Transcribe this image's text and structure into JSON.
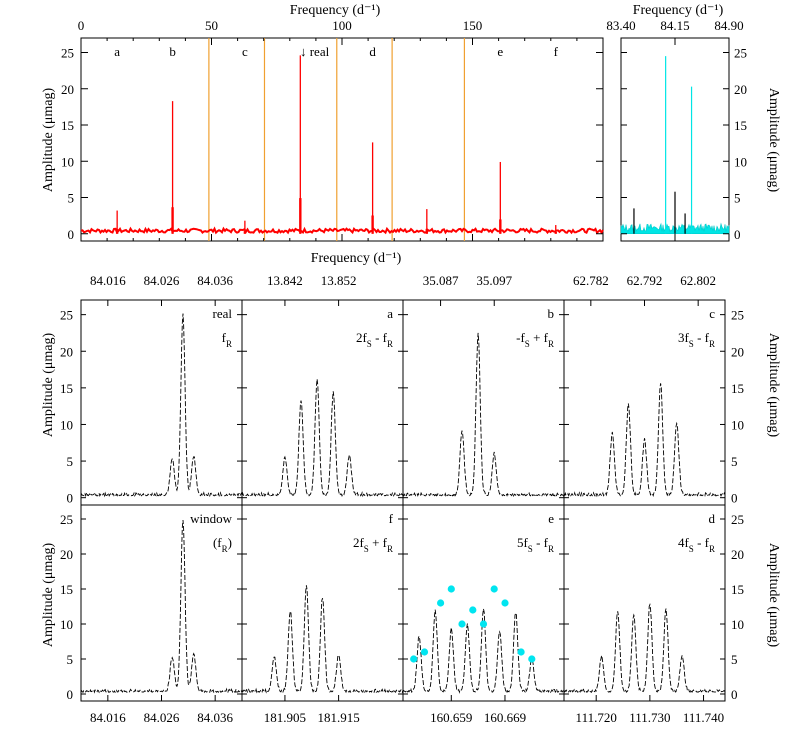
{
  "top_panel": {
    "xlabel_top": "Frequency (d⁻¹)",
    "xlabel_bottom": "Frequency (d⁻¹)",
    "ylabel": "Amplitude (μmag)",
    "x_ticks": [
      "0",
      "50",
      "100",
      "150"
    ],
    "y_ticks": [
      "0",
      "5",
      "10",
      "15",
      "20",
      "25"
    ],
    "letters": [
      {
        "text": "a",
        "x": 13.85
      },
      {
        "text": "b",
        "x": 35.09
      },
      {
        "text": "c",
        "x": 62.79
      },
      {
        "text": "↓ real",
        "x": 89.5
      },
      {
        "text": "d",
        "x": 111.73
      },
      {
        "text": "e",
        "x": 160.66
      },
      {
        "text": "f",
        "x": 181.9
      }
    ]
  },
  "zoom_panel": {
    "xlabel_top": "Frequency (d⁻¹)",
    "ylabel": "Amplitude (μmag)",
    "x_ticks": [
      "83.40",
      "84.15",
      "84.90"
    ],
    "y_ticks": [
      "0",
      "5",
      "10",
      "15",
      "20",
      "25"
    ]
  },
  "grid": {
    "top_ticks": [
      [
        "84.016",
        "84.026",
        "84.036"
      ],
      [
        "13.842",
        "13.852"
      ],
      [
        "35.087",
        "35.097"
      ],
      [
        "62.782",
        "62.792",
        "62.802"
      ]
    ],
    "bottom_ticks": [
      [
        "84.016",
        "84.026",
        "84.036"
      ],
      [
        "181.905",
        "181.915"
      ],
      [
        "160.659",
        "160.669"
      ],
      [
        "111.720",
        "111.730",
        "111.740"
      ]
    ],
    "y_ticks": [
      "0",
      "5",
      "10",
      "15",
      "20",
      "25"
    ],
    "ylabel": "Amplitude (μmag)",
    "panels": [
      {
        "name": "real",
        "formula": "f_R"
      },
      {
        "name": "a",
        "formula": "2f_S - f_R"
      },
      {
        "name": "b",
        "formula": "-f_S + f_R"
      },
      {
        "name": "c",
        "formula": "3f_S - f_R"
      },
      {
        "name": "window",
        "formula": "(f_R)"
      },
      {
        "name": "f",
        "formula": "2f_S + f_R"
      },
      {
        "name": "e",
        "formula": "5f_S - f_R"
      },
      {
        "name": "d",
        "formula": "4f_S - f_R"
      }
    ]
  },
  "chart_data": [
    {
      "type": "line",
      "title": "",
      "xlabel": "Frequency (d⁻¹)",
      "ylabel": "Amplitude (μmag)",
      "xlim": [
        0,
        200
      ],
      "ylim": [
        -1,
        27
      ],
      "series": [
        {
          "x": [
            13.85,
            35.09,
            62.79,
            84.03,
            111.73,
            132.5,
            160.66,
            181.9
          ],
          "y": [
            3.2,
            18.3,
            1.8,
            24.6,
            12.6,
            3.4,
            9.9,
            1.2
          ]
        }
      ],
      "vertical_lines": [
        49.0,
        70.3,
        98.0,
        119.2,
        146.9
      ],
      "colors": {
        "spectrum": "#ff0000",
        "lines": "#f0a030"
      }
    },
    {
      "type": "line",
      "title": "",
      "xlabel": "Frequency (d⁻¹)",
      "ylabel": "Amplitude (μmag)",
      "xlim": [
        83.4,
        84.9
      ],
      "ylim": [
        -1,
        27
      ],
      "series": [
        {
          "x": [
            83.58,
            84.02,
            84.15,
            84.29,
            84.38
          ],
          "y": [
            3.5,
            24.5,
            5.8,
            2.8,
            20.3
          ]
        }
      ],
      "colors": {
        "spectrum": "#00e5e5",
        "overlay": "#000000"
      }
    },
    {
      "type": "line",
      "title": "",
      "ylabel": "Amplitude (μmag)",
      "ylim": [
        -1,
        27
      ],
      "panels": [
        {
          "name": "real",
          "xlim": [
            84.011,
            84.041
          ],
          "peaks": [
            [
              84.03,
              24.5
            ],
            [
              84.028,
              5.0
            ],
            [
              84.032,
              5.3
            ]
          ]
        },
        {
          "name": "a",
          "xlim": [
            13.834,
            13.864
          ],
          "peaks": [
            [
              13.845,
              13.0
            ],
            [
              13.848,
              15.8
            ],
            [
              13.851,
              14.0
            ],
            [
              13.842,
              5.1
            ],
            [
              13.854,
              5.4
            ]
          ]
        },
        {
          "name": "b",
          "xlim": [
            35.08,
            35.11
          ],
          "peaks": [
            [
              35.094,
              22.1
            ],
            [
              35.091,
              8.8
            ],
            [
              35.097,
              5.6
            ]
          ]
        },
        {
          "name": "c",
          "xlim": [
            62.777,
            62.807
          ],
          "peaks": [
            [
              62.789,
              12.4
            ],
            [
              62.795,
              15.3
            ],
            [
              62.786,
              8.5
            ],
            [
              62.792,
              7.5
            ],
            [
              62.798,
              9.8
            ]
          ]
        },
        {
          "name": "window",
          "xlim": [
            84.011,
            84.041
          ],
          "peaks": [
            [
              84.03,
              24.5
            ],
            [
              84.032,
              5.4
            ],
            [
              84.028,
              4.9
            ]
          ]
        },
        {
          "name": "f",
          "xlim": [
            181.897,
            181.927
          ],
          "peaks": [
            [
              181.906,
              11.5
            ],
            [
              181.909,
              15.2
            ],
            [
              181.912,
              13.4
            ],
            [
              181.903,
              5.0
            ],
            [
              181.915,
              5.2
            ]
          ]
        },
        {
          "name": "e",
          "xlim": [
            160.65,
            160.68
          ],
          "peaks": [
            [
              160.656,
              11.5
            ],
            [
              160.659,
              8.8
            ],
            [
              160.662,
              9.5
            ],
            [
              160.665,
              11.8
            ],
            [
              160.668,
              8.6
            ],
            [
              160.671,
              11.3
            ],
            [
              160.653,
              7.8
            ],
            [
              160.674,
              4.6
            ]
          ]
        },
        {
          "name": "d",
          "xlim": [
            111.714,
            111.744
          ],
          "peaks": [
            [
              111.724,
              11.5
            ],
            [
              111.727,
              11.0
            ],
            [
              111.73,
              12.5
            ],
            [
              111.733,
              11.7
            ],
            [
              111.721,
              5.0
            ],
            [
              111.736,
              5.1
            ]
          ]
        }
      ],
      "markers_panel_e": [
        [
          160.652,
          5.0
        ],
        [
          160.654,
          6.0
        ],
        [
          160.657,
          13.0
        ],
        [
          160.659,
          15.0
        ],
        [
          160.661,
          10.0
        ],
        [
          160.663,
          12.0
        ],
        [
          160.665,
          10.0
        ],
        [
          160.667,
          15.0
        ],
        [
          160.669,
          13.0
        ],
        [
          160.672,
          6.0
        ],
        [
          160.674,
          5.0
        ]
      ],
      "colors": {
        "curve": "#000000",
        "markers": "#00e5f0"
      }
    }
  ]
}
